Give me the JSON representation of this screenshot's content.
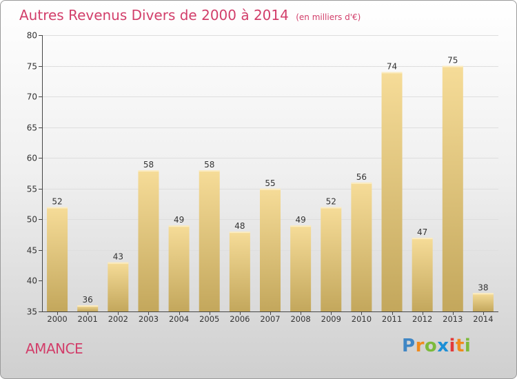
{
  "header": {
    "title": "Autres Revenus Divers de 2000 à 2014",
    "subtitle": "(en milliers d'€)"
  },
  "place_label": "AMANCE",
  "logo": {
    "text": "Proxiti",
    "letters": [
      "P",
      "r",
      "o",
      "x",
      "i",
      "t",
      "i"
    ],
    "colors": [
      "#3f86c4",
      "#f08a1c",
      "#7cba3c",
      "#1c8fd6",
      "#e23a3a",
      "#f08a1c",
      "#7cba3c"
    ]
  },
  "colors": {
    "title": "#d23e6a",
    "bar_top": "#f6dc98",
    "bar_bottom": "#c3a75c",
    "grid": "#dedede",
    "axis": "#444444"
  },
  "chart_data": {
    "type": "bar",
    "categories": [
      "2000",
      "2001",
      "2002",
      "2003",
      "2004",
      "2005",
      "2006",
      "2007",
      "2008",
      "2009",
      "2010",
      "2011",
      "2012",
      "2013",
      "2014"
    ],
    "values": [
      52,
      36,
      43,
      58,
      49,
      58,
      48,
      55,
      49,
      52,
      56,
      74,
      47,
      75,
      38
    ],
    "ylim": [
      35,
      80
    ],
    "yticks": [
      35,
      40,
      45,
      50,
      55,
      60,
      65,
      70,
      75,
      80
    ],
    "grid": true,
    "data_labels": true
  }
}
